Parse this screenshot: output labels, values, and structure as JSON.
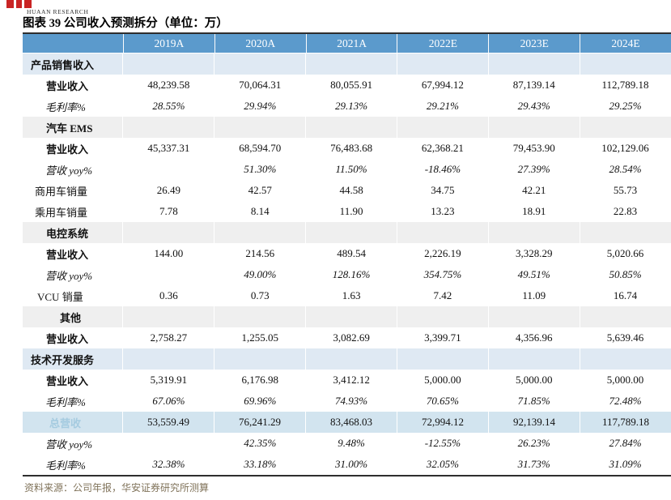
{
  "brand": {
    "name": "HUAAN RESEARCH",
    "logo_color": "#c92424"
  },
  "title": "图表 39 公司收入预测拆分（单位：万）",
  "source_note": "资料来源：公司年报，华安证券研究所测算",
  "colors": {
    "header_bg": "#5b9acc",
    "header_text": "#ffffff",
    "section_blue_bg": "#dfe9f3",
    "section_gray_bg": "#efefef",
    "total_row_bg": "#d2e4ef",
    "total_label_text": "#a5cbe0",
    "table_border": "#2e2e2e",
    "source_text": "#80735a"
  },
  "table": {
    "columns": [
      "2019A",
      "2020A",
      "2021A",
      "2022E",
      "2023E",
      "2024E"
    ],
    "rows": [
      {
        "label": "产品销售收入",
        "cls": "sec-blue",
        "indent": 10,
        "values": [
          "",
          "",
          "",
          "",
          "",
          ""
        ]
      },
      {
        "label": "营业收入",
        "cls": "bold",
        "indent": 29,
        "values": [
          "48,239.58",
          "70,064.31",
          "80,055.91",
          "67,994.12",
          "87,139.14",
          "112,789.18"
        ]
      },
      {
        "label": "毛利率%",
        "cls": "italic",
        "indent": 28,
        "values": [
          "28.55%",
          "29.94%",
          "29.13%",
          "29.21%",
          "29.43%",
          "29.25%"
        ]
      },
      {
        "label": "汽车 EMS",
        "cls": "sec-gray",
        "indent": 29,
        "values": [
          "",
          "",
          "",
          "",
          "",
          ""
        ]
      },
      {
        "label": "营业收入",
        "cls": "bold",
        "indent": 29,
        "values": [
          "45,337.31",
          "68,594.70",
          "76,483.68",
          "62,368.21",
          "79,453.90",
          "102,129.06"
        ]
      },
      {
        "label": "营收 yoy%",
        "cls": "italic",
        "indent": 28,
        "values": [
          "",
          "51.30%",
          "11.50%",
          "-18.46%",
          "27.39%",
          "28.54%"
        ]
      },
      {
        "label": "商用车销量",
        "cls": "plain",
        "indent": 15,
        "values": [
          "26.49",
          "42.57",
          "44.58",
          "34.75",
          "42.21",
          "55.73"
        ]
      },
      {
        "label": "乘用车销量",
        "cls": "plain",
        "indent": 15,
        "values": [
          "7.78",
          "8.14",
          "11.90",
          "13.23",
          "18.91",
          "22.83"
        ]
      },
      {
        "label": "电控系统",
        "cls": "sec-gray",
        "indent": 29,
        "values": [
          "",
          "",
          "",
          "",
          "",
          ""
        ]
      },
      {
        "label": "营业收入",
        "cls": "bold",
        "indent": 29,
        "values": [
          "144.00",
          "214.56",
          "489.54",
          "2,226.19",
          "3,328.29",
          "5,020.66"
        ]
      },
      {
        "label": "营收 yoy%",
        "cls": "italic",
        "indent": 28,
        "values": [
          "",
          "49.00%",
          "128.16%",
          "354.75%",
          "49.51%",
          "50.85%"
        ]
      },
      {
        "label": "VCU 销量",
        "cls": "plain",
        "indent": 18,
        "values": [
          "0.36",
          "0.73",
          "1.63",
          "7.42",
          "11.09",
          "16.74"
        ]
      },
      {
        "label": "其他",
        "cls": "sec-gray",
        "indent": 46,
        "values": [
          "",
          "",
          "",
          "",
          "",
          ""
        ]
      },
      {
        "label": "营业收入",
        "cls": "bold",
        "indent": 29,
        "values": [
          "2,758.27",
          "1,255.05",
          "3,082.69",
          "3,399.71",
          "4,356.96",
          "5,639.46"
        ]
      },
      {
        "label": "技术开发服务",
        "cls": "sec-blue",
        "indent": 10,
        "values": [
          "",
          "",
          "",
          "",
          "",
          ""
        ]
      },
      {
        "label": "营业收入",
        "cls": "bold",
        "indent": 29,
        "values": [
          "5,319.91",
          "6,176.98",
          "3,412.12",
          "5,000.00",
          "5,000.00",
          "5,000.00"
        ]
      },
      {
        "label": "毛利率%",
        "cls": "italic",
        "indent": 28,
        "values": [
          "67.06%",
          "69.96%",
          "74.93%",
          "70.65%",
          "71.85%",
          "72.48%"
        ]
      },
      {
        "label": "总营收",
        "cls": "total",
        "indent": 33,
        "values": [
          "53,559.49",
          "76,241.29",
          "83,468.03",
          "72,994.12",
          "92,139.14",
          "117,789.18"
        ]
      },
      {
        "label": "营收 yoy%",
        "cls": "italic",
        "indent": 28,
        "values": [
          "",
          "42.35%",
          "9.48%",
          "-12.55%",
          "26.23%",
          "27.84%"
        ]
      },
      {
        "label": "毛利率%",
        "cls": "italic",
        "indent": 28,
        "values": [
          "32.38%",
          "33.18%",
          "31.00%",
          "32.05%",
          "31.73%",
          "31.09%"
        ]
      }
    ]
  }
}
